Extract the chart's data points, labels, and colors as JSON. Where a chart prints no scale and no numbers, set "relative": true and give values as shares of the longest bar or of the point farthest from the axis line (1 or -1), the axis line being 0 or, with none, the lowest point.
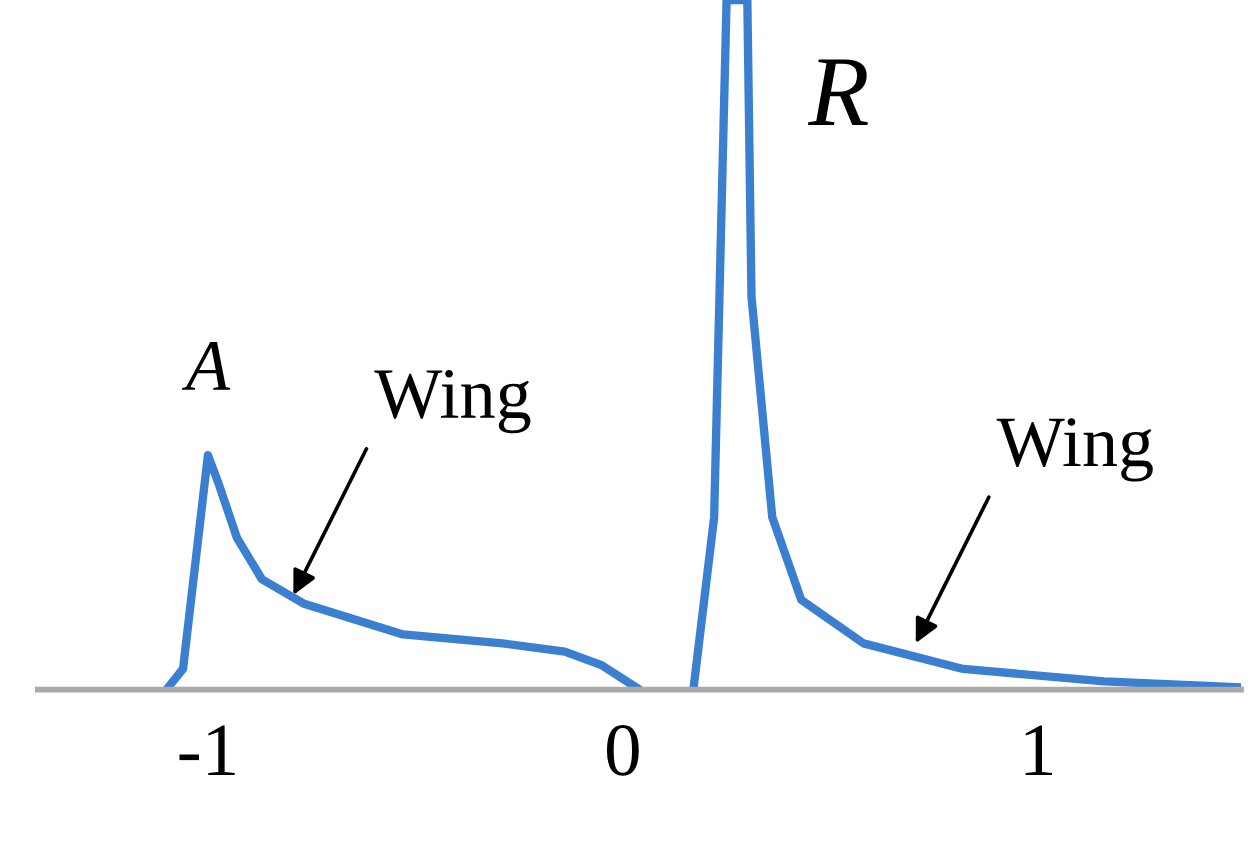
{
  "chart_data": {
    "type": "line",
    "relative": true,
    "color": "#3a7fd0",
    "x": [
      -1.1,
      -1.06,
      -1.0,
      -0.975,
      -0.93,
      -0.87,
      -0.77,
      -0.53,
      -0.29,
      -0.14,
      -0.05,
      0.04,
      null,
      0.17,
      0.22,
      0.25,
      0.3,
      0.31,
      0.36,
      0.43,
      0.58,
      0.82,
      1.16,
      1.49
    ],
    "values": [
      0,
      0.03,
      0.34,
      0.3,
      0.22,
      0.16,
      0.125,
      0.08,
      0.067,
      0.055,
      0.035,
      0,
      null,
      0,
      0.25,
      1,
      1,
      0.57,
      0.25,
      0.13,
      0.067,
      0.03,
      0.012,
      0.003
    ],
    "xlim": [
      -1.41,
      1.49
    ],
    "xticks": [
      {
        "value": -1,
        "label": "-1"
      },
      0,
      1
    ],
    "annotations": [
      {
        "text": "A",
        "x": -1.0,
        "y": 0.34
      },
      {
        "text": "R",
        "x": 0.3,
        "y": 1
      },
      {
        "text": "Wing",
        "x": -0.8,
        "y": 0.13
      },
      {
        "text": "Wing",
        "x": 0.7,
        "y": 0.06
      }
    ],
    "grid": false,
    "legend": false
  }
}
